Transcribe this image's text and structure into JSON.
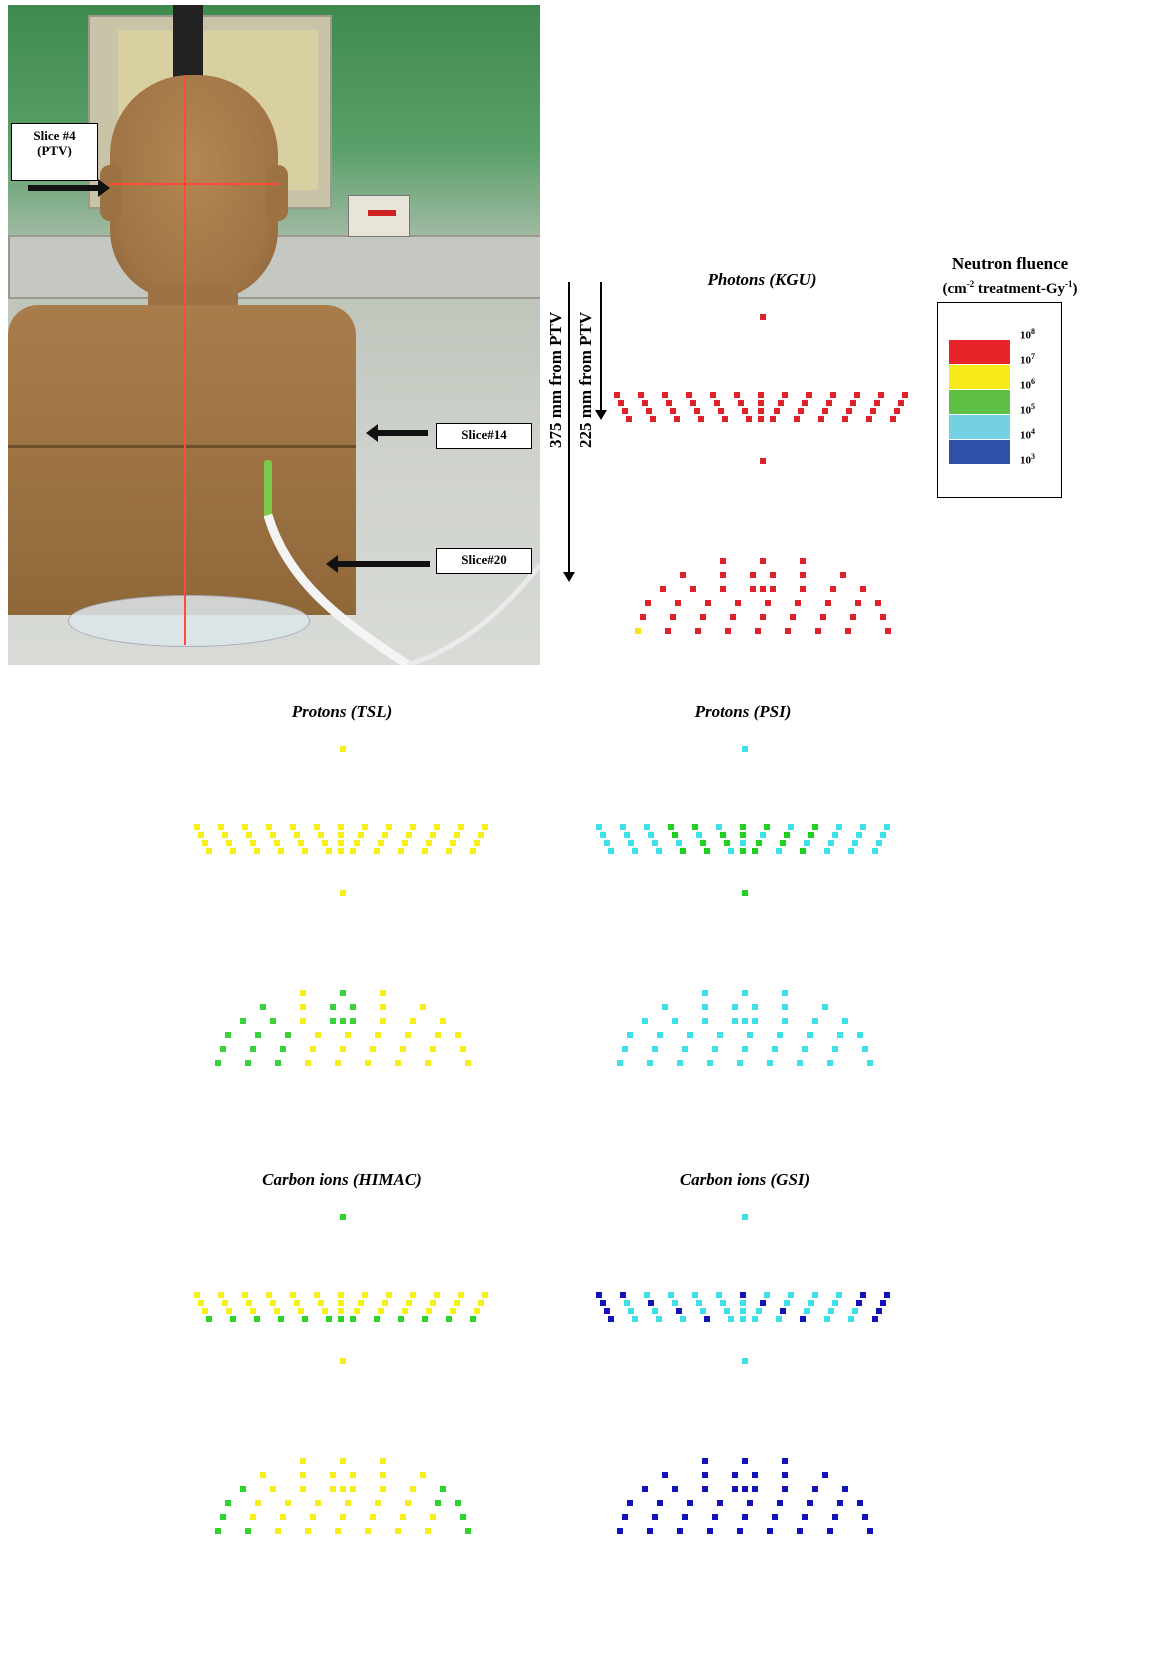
{
  "photo": {
    "labels": {
      "slice4": "Slice #4",
      "slice4_sub": "(PTV)",
      "slice14": "Slice#14",
      "slice20": "Slice#20"
    }
  },
  "distances": {
    "far": "375 mm from PTV",
    "near": "225 mm from PTV"
  },
  "legend": {
    "title": "Neutron fluence",
    "unit_prefix": "(cm",
    "unit_mid": "treatment-Gy",
    "unit_suffix": ")",
    "base": "10",
    "exponents": [
      "8",
      "7",
      "6",
      "5",
      "4",
      "3"
    ],
    "colors": [
      "#e8242a",
      "#f6ea1a",
      "#5ebf45",
      "#74d1e2",
      "#3050a8"
    ]
  },
  "panels": [
    {
      "id": "kgu",
      "title": "Photons (KGU)",
      "primary": "#e02128",
      "secondary": "#f7e51b"
    },
    {
      "id": "tsl",
      "title": "Protons (TSL)",
      "primary": "#f4ee1c",
      "secondary": "#3ad23a"
    },
    {
      "id": "psi",
      "title": "Protons (PSI)",
      "primary": "#3fe0e8",
      "secondary": "#20d020"
    },
    {
      "id": "himac",
      "title": "Carbon ions (HIMAC)",
      "primary": "#f4ee1c",
      "secondary": "#2ed42e"
    },
    {
      "id": "gsi",
      "title": "Carbon ions (GSI)",
      "primary": "#3fe0e8",
      "secondary": "#1212b8"
    }
  ]
}
